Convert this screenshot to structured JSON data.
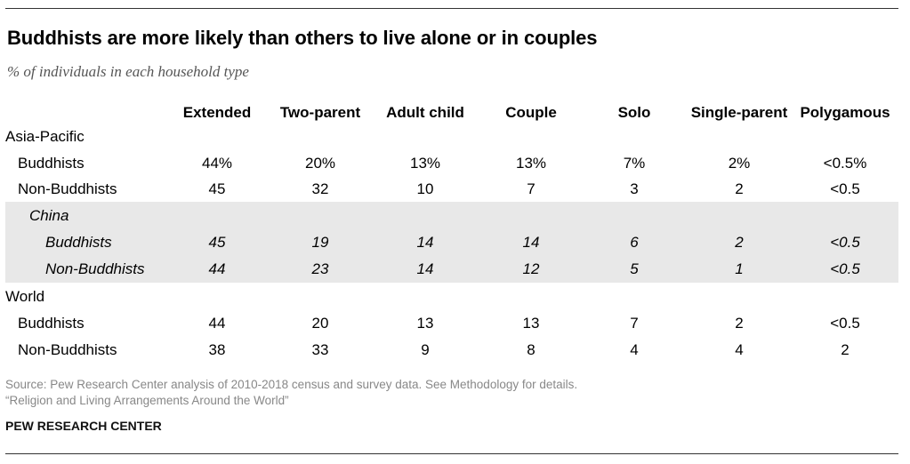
{
  "header": {
    "title": "Buddhists are more likely than others to live alone or in couples",
    "subtitle": "% of individuals in each household type"
  },
  "chart_data": {
    "type": "table",
    "title": "Buddhists are more likely than others to live alone or in couples",
    "subtitle": "% of individuals in each household type",
    "columns": [
      "Extended",
      "Two-parent",
      "Adult child",
      "Couple",
      "Solo",
      "Single-parent",
      "Polygamous"
    ],
    "groups": {
      "asia": {
        "label": "Asia-Pacific",
        "rows": {
          "buddhists": {
            "label": "Buddhists",
            "values": [
              "44%",
              "20%",
              "13%",
              "13%",
              "7%",
              "2%",
              "<0.5%"
            ]
          },
          "non": {
            "label": "Non-Buddhists",
            "values": [
              "45",
              "32",
              "10",
              "7",
              "3",
              "2",
              "<0.5"
            ]
          }
        }
      },
      "china": {
        "label": "China",
        "rows": {
          "buddhists": {
            "label": "Buddhists",
            "values": [
              "45",
              "19",
              "14",
              "14",
              "6",
              "2",
              "<0.5"
            ]
          },
          "non": {
            "label": "Non-Buddhists",
            "values": [
              "44",
              "23",
              "14",
              "12",
              "5",
              "1",
              "<0.5"
            ]
          }
        }
      },
      "world": {
        "label": "World",
        "rows": {
          "buddhists": {
            "label": "Buddhists",
            "values": [
              "44",
              "20",
              "13",
              "13",
              "7",
              "2",
              "<0.5"
            ]
          },
          "non": {
            "label": "Non-Buddhists",
            "values": [
              "38",
              "33",
              "9",
              "8",
              "4",
              "4",
              "2"
            ]
          }
        }
      }
    }
  },
  "footer": {
    "source": "Source: Pew Research Center analysis of 2010-2018 census and survey data. See Methodology for details.",
    "report": "“Religion and Living Arrangements Around the World”",
    "brand": "PEW RESEARCH CENTER"
  },
  "colors": {
    "shade": "#e8e8e8",
    "footnote": "#888888",
    "subtitle": "#555555"
  }
}
